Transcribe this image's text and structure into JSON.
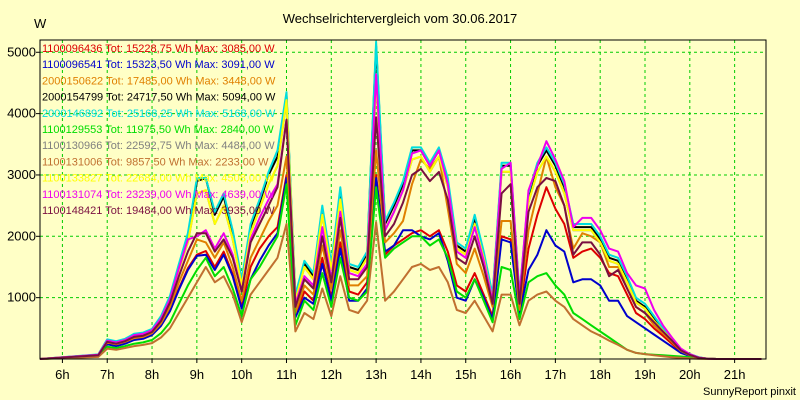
{
  "chart_data": {
    "type": "line",
    "title": "Wechselrichtervergleich vom 30.06.2017",
    "ylabel": "W",
    "xlabel": "",
    "footer": "SunnyReport pinxit",
    "ylim": [
      0,
      5200
    ],
    "xlim": [
      5.5,
      21.7
    ],
    "yticks": [
      1000,
      2000,
      3000,
      4000,
      5000
    ],
    "xticks": [
      6,
      7,
      8,
      9,
      10,
      11,
      12,
      13,
      14,
      15,
      16,
      17,
      18,
      19,
      20,
      21
    ],
    "xtick_labels": [
      "6h",
      "7h",
      "8h",
      "9h",
      "10h",
      "11h",
      "12h",
      "13h",
      "14h",
      "15h",
      "16h",
      "17h",
      "18h",
      "19h",
      "20h",
      "21h"
    ],
    "grid": true,
    "legend_position": "top-left",
    "x": [
      5.5,
      6.8,
      7.0,
      7.2,
      7.4,
      7.6,
      7.8,
      8.0,
      8.2,
      8.4,
      8.6,
      8.8,
      9.0,
      9.2,
      9.4,
      9.6,
      9.8,
      10.0,
      10.2,
      10.4,
      10.6,
      10.8,
      11.0,
      11.2,
      11.4,
      11.6,
      11.8,
      12.0,
      12.2,
      12.4,
      12.6,
      12.8,
      13.0,
      13.2,
      13.4,
      13.6,
      13.8,
      14.0,
      14.2,
      14.4,
      14.6,
      14.8,
      15.0,
      15.2,
      15.4,
      15.6,
      15.8,
      16.0,
      16.2,
      16.4,
      16.6,
      16.8,
      17.0,
      17.2,
      17.4,
      17.6,
      17.8,
      18.0,
      18.2,
      18.4,
      18.6,
      18.8,
      19.0,
      19.2,
      19.4,
      19.6,
      19.8,
      20.0,
      20.2,
      20.4,
      20.6,
      20.8,
      21.0,
      21.2,
      21.4,
      21.6
    ],
    "series": [
      {
        "name": "1100096436 Tot: 15228,75 Wh Max: 3085,00 W",
        "color": "#dd0000",
        "values": [
          0,
          50,
          250,
          220,
          260,
          320,
          340,
          400,
          550,
          800,
          1150,
          1480,
          1700,
          1760,
          1500,
          1750,
          1380,
          850,
          1500,
          1800,
          2000,
          2150,
          3000,
          700,
          1100,
          950,
          1650,
          1000,
          1900,
          1100,
          1050,
          1250,
          3000,
          1700,
          1850,
          1950,
          2050,
          2100,
          2000,
          2100,
          1750,
          1200,
          1100,
          1400,
          1050,
          700,
          2000,
          1950,
          750,
          1800,
          2350,
          2800,
          2450,
          2200,
          1650,
          1750,
          1800,
          1650,
          1400,
          1350,
          1050,
          750,
          650,
          500,
          380,
          250,
          120,
          60,
          20,
          5,
          0,
          0,
          0,
          0,
          0,
          0
        ]
      },
      {
        "name": "1100096541 Tot: 15323,50 Wh Max: 3091,00 W",
        "color": "#0000cc",
        "values": [
          0,
          50,
          240,
          210,
          250,
          310,
          330,
          390,
          540,
          780,
          1130,
          1450,
          1680,
          1700,
          1450,
          1700,
          1350,
          820,
          1300,
          1600,
          1850,
          2050,
          2950,
          680,
          1000,
          900,
          1550,
          950,
          1800,
          950,
          950,
          1150,
          2950,
          1750,
          1850,
          2100,
          2100,
          2000,
          1950,
          2050,
          1600,
          1000,
          950,
          1300,
          1000,
          650,
          1950,
          1900,
          730,
          1450,
          1700,
          2100,
          1850,
          1750,
          1250,
          1300,
          1300,
          1200,
          950,
          950,
          700,
          600,
          500,
          400,
          300,
          200,
          100,
          50,
          15,
          5,
          0,
          0,
          0,
          0,
          0,
          0
        ]
      },
      {
        "name": "2000150622 Tot: 17485,00 Wh Max: 3448,00 W",
        "color": "#e08000",
        "values": [
          0,
          55,
          270,
          240,
          280,
          340,
          360,
          420,
          580,
          850,
          1250,
          1600,
          1950,
          1900,
          1650,
          1900,
          1500,
          950,
          1650,
          1950,
          2250,
          2500,
          3300,
          750,
          1200,
          1050,
          1850,
          1150,
          2100,
          1200,
          1200,
          1350,
          3400,
          1900,
          2050,
          2250,
          2850,
          3250,
          3100,
          3300,
          2450,
          1550,
          1400,
          1800,
          1350,
          850,
          2250,
          2250,
          800,
          2100,
          2700,
          3300,
          2800,
          2500,
          1800,
          2050,
          2000,
          1900,
          1500,
          1500,
          1150,
          850,
          750,
          550,
          420,
          280,
          130,
          60,
          20,
          5,
          0,
          0,
          0,
          0,
          0,
          0
        ]
      },
      {
        "name": "2000154799 Tot: 24717,50 Wh Max: 5094,00 W",
        "color": "#000000",
        "values": [
          0,
          70,
          310,
          280,
          320,
          400,
          420,
          480,
          680,
          1000,
          1500,
          2000,
          2900,
          2950,
          2350,
          2650,
          2050,
          1250,
          2150,
          2550,
          3000,
          3300,
          4300,
          1000,
          1550,
          1350,
          2450,
          1500,
          2700,
          1500,
          1450,
          1700,
          5100,
          2200,
          2500,
          2850,
          3400,
          3400,
          3150,
          3400,
          2900,
          1850,
          1750,
          2300,
          1700,
          1000,
          3150,
          3150,
          1000,
          2650,
          3150,
          3400,
          3150,
          2800,
          2150,
          2150,
          2150,
          1950,
          1650,
          1600,
          1300,
          950,
          850,
          650,
          480,
          320,
          150,
          70,
          25,
          5,
          0,
          0,
          0,
          0,
          0,
          0
        ]
      },
      {
        "name": "2000146892 Tot: 25168,25 Wh Max: 5168,00 W",
        "color": "#00dddd",
        "values": [
          0,
          75,
          320,
          290,
          330,
          410,
          430,
          490,
          700,
          1030,
          1550,
          2050,
          2950,
          2950,
          2400,
          2700,
          2100,
          1300,
          2200,
          2600,
          3050,
          3400,
          4350,
          1050,
          1600,
          1400,
          2500,
          1550,
          2800,
          1550,
          1500,
          1750,
          5170,
          2250,
          2550,
          2900,
          3450,
          3450,
          3200,
          3450,
          2950,
          1900,
          1800,
          2350,
          1750,
          1050,
          3200,
          3200,
          1050,
          2700,
          3200,
          3450,
          3200,
          2850,
          2200,
          2200,
          2200,
          2000,
          1700,
          1650,
          1350,
          1000,
          900,
          700,
          500,
          330,
          160,
          80,
          30,
          5,
          0,
          0,
          0,
          0,
          0,
          0
        ]
      },
      {
        "name": "1100129553 Tot: 11975,50 Wh Max: 2840,00 W",
        "color": "#00dd00",
        "values": [
          0,
          40,
          200,
          180,
          210,
          250,
          270,
          310,
          420,
          600,
          900,
          1200,
          1450,
          1650,
          1350,
          1500,
          1150,
          700,
          1300,
          1500,
          1750,
          2000,
          2850,
          550,
          950,
          800,
          1400,
          850,
          1650,
          1000,
          950,
          1100,
          2800,
          1650,
          1800,
          1900,
          2000,
          2000,
          1850,
          1950,
          1650,
          1100,
          1000,
          1300,
          950,
          600,
          1500,
          1450,
          650,
          1250,
          1350,
          1400,
          1200,
          1050,
          750,
          650,
          550,
          450,
          350,
          250,
          150,
          100,
          80,
          70,
          60,
          50,
          40,
          30,
          15,
          5,
          0,
          0,
          0,
          0,
          0,
          0
        ]
      },
      {
        "name": "1100130966 Tot: 22592,75 Wh Max: 4484,00 W",
        "color": "#808080",
        "values": [
          0,
          65,
          290,
          260,
          300,
          380,
          400,
          460,
          650,
          960,
          1450,
          1900,
          2700,
          2750,
          2200,
          2500,
          1950,
          1200,
          2050,
          2450,
          2850,
          3150,
          4200,
          950,
          1500,
          1300,
          2350,
          1450,
          2600,
          1450,
          1400,
          1650,
          4480,
          2100,
          2400,
          2750,
          3250,
          3300,
          3050,
          3300,
          2800,
          1800,
          1700,
          2200,
          1650,
          950,
          3050,
          3050,
          980,
          2550,
          3050,
          3300,
          3050,
          2700,
          2100,
          2100,
          2100,
          1900,
          1600,
          1550,
          1250,
          920,
          820,
          620,
          460,
          310,
          140,
          65,
          22,
          5,
          0,
          0,
          0,
          0,
          0,
          0
        ]
      },
      {
        "name": "1100131006 Tot: 9857,50 Wh Max: 2233,00 W",
        "color": "#c07030",
        "values": [
          0,
          35,
          170,
          150,
          180,
          210,
          230,
          260,
          350,
          500,
          750,
          1000,
          1250,
          1500,
          1250,
          1350,
          1050,
          600,
          1050,
          1250,
          1450,
          1650,
          2200,
          450,
          750,
          650,
          1150,
          700,
          1350,
          800,
          750,
          950,
          2230,
          950,
          1100,
          1300,
          1500,
          1550,
          1450,
          1500,
          1250,
          800,
          750,
          950,
          700,
          450,
          1050,
          1050,
          550,
          950,
          1050,
          1100,
          950,
          850,
          650,
          550,
          450,
          380,
          300,
          230,
          150,
          100,
          80,
          60,
          45,
          30,
          20,
          10,
          5,
          0,
          0,
          0,
          0,
          0,
          0,
          0
        ]
      },
      {
        "name": "1100133827 Tot: 22684,00 Wh Max: 4508,00 W",
        "color": "#ffff00",
        "values": [
          0,
          66,
          292,
          262,
          302,
          382,
          402,
          462,
          652,
          962,
          1452,
          1902,
          2702,
          2752,
          2202,
          2502,
          1952,
          1202,
          2052,
          2452,
          2852,
          3152,
          4220,
          952,
          1502,
          1302,
          2352,
          1452,
          2602,
          1452,
          1402,
          1652,
          4508,
          2102,
          2402,
          2752,
          3252,
          3302,
          3052,
          3302,
          2802,
          1802,
          1702,
          2202,
          1652,
          952,
          3052,
          3052,
          982,
          2552,
          3052,
          3302,
          3052,
          2702,
          2102,
          2102,
          2102,
          1902,
          1602,
          1552,
          1252,
          922,
          822,
          622,
          462,
          312,
          142,
          66,
          22,
          5,
          0,
          0,
          0,
          0,
          0,
          0
        ]
      },
      {
        "name": "1100131074 Tot: 23239,00 Wh Max: 4639,00 W",
        "color": "#ee00ee",
        "values": [
          0,
          68,
          300,
          270,
          310,
          390,
          410,
          470,
          660,
          980,
          1480,
          1950,
          2000,
          2100,
          1800,
          2050,
          1700,
          1100,
          1950,
          2300,
          2600,
          2850,
          3900,
          900,
          1350,
          1200,
          2150,
          1300,
          2400,
          1400,
          1350,
          1550,
          4640,
          2100,
          2400,
          2750,
          3350,
          3400,
          3150,
          3400,
          2850,
          1750,
          1650,
          2150,
          1600,
          950,
          3100,
          3200,
          1000,
          2750,
          3150,
          3550,
          3250,
          2900,
          2150,
          2300,
          2300,
          2100,
          1800,
          1750,
          1400,
          1200,
          1150,
          800,
          550,
          350,
          170,
          80,
          25,
          5,
          0,
          0,
          0,
          0,
          0,
          0
        ]
      },
      {
        "name": "1100148421 Tot: 19484,00 Wh Max: 3935,00 W",
        "color": "#7a1040",
        "values": [
          0,
          60,
          280,
          250,
          290,
          360,
          380,
          440,
          620,
          920,
          1350,
          1750,
          2050,
          2050,
          1750,
          1950,
          1650,
          1100,
          1900,
          2200,
          2500,
          2800,
          3900,
          850,
          1300,
          1150,
          2000,
          1250,
          2300,
          1300,
          1300,
          1500,
          3940,
          2000,
          2200,
          2550,
          3000,
          3100,
          2900,
          3050,
          2600,
          1650,
          1550,
          2000,
          1500,
          900,
          2700,
          2850,
          900,
          2400,
          2800,
          2950,
          2900,
          2500,
          1700,
          1900,
          1900,
          1700,
          1350,
          1450,
          1150,
          850,
          750,
          600,
          450,
          300,
          140,
          65,
          20,
          5,
          0,
          0,
          0,
          0,
          0,
          0
        ]
      }
    ]
  }
}
